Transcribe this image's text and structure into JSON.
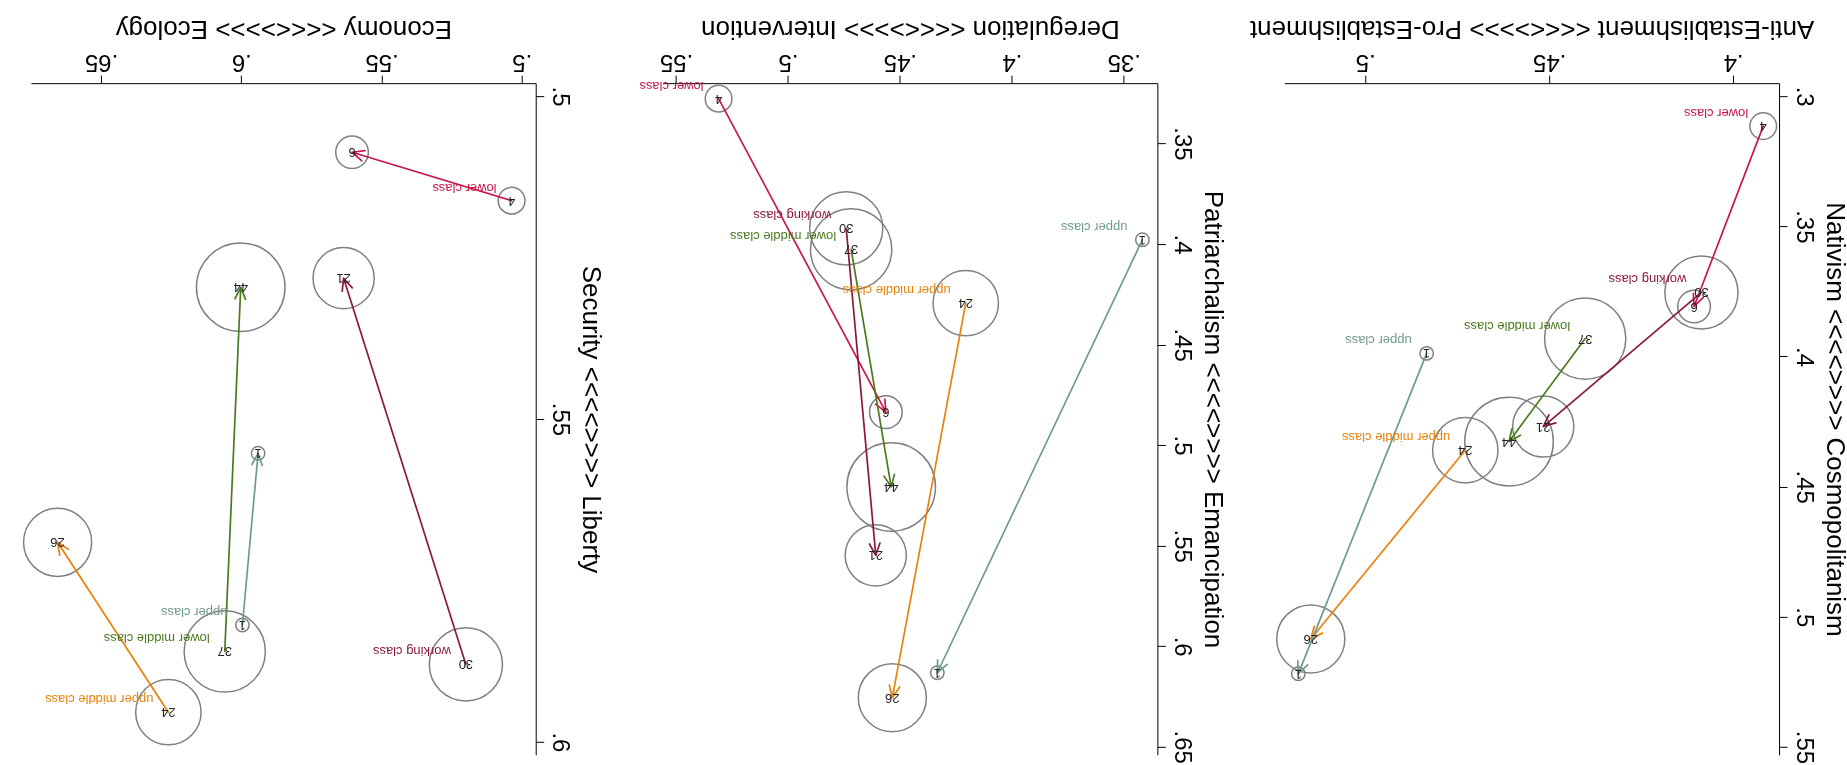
{
  "chart_data": [
    {
      "type": "bubble",
      "xlabel": "Economy <<<<>>>> Ecology",
      "ylabel": "Security <<<<>>>> Liberty",
      "xlim": [
        0.675,
        0.495
      ],
      "ylim": [
        0.602,
        0.498
      ],
      "xticks": [
        {
          "value": 0.5,
          "label": ".5"
        },
        {
          "value": 0.55,
          "label": ".55"
        },
        {
          "value": 0.6,
          "label": ".6"
        },
        {
          "value": 0.65,
          "label": ".65"
        }
      ],
      "yticks": [
        {
          "value": 0.5,
          "label": ".5"
        },
        {
          "value": 0.55,
          "label": ".55"
        },
        {
          "value": 0.6,
          "label": ".6"
        }
      ],
      "series": [
        {
          "type": "bubble",
          "color": "#808080",
          "x": [
            0.5036,
            0.5605,
            0.5199,
            0.5635,
            0.6059,
            0.6002,
            0.5996,
            0.594,
            0.626,
            0.6655
          ],
          "values": [
            0.5162,
            0.5087,
            0.588,
            0.5282,
            0.586,
            0.5296,
            0.5819,
            0.5553,
            0.5954,
            0.5691
          ],
          "sizes": [
            0.091,
            0.136,
            0.682,
            0.477,
            0.841,
            1,
            0.023,
            0.023,
            0.545,
            0.591
          ]
        },
        {
          "type": "line",
          "name": "lower class",
          "color": "#c8184a",
          "x": [
            0.5036,
            0.5605
          ],
          "values": [
            0.5162,
            0.5087
          ]
        },
        {
          "type": "line",
          "name": "working class",
          "color": "#8b1a3a",
          "x": [
            0.5199,
            0.5635
          ],
          "values": [
            0.588,
            0.5282
          ]
        },
        {
          "type": "line",
          "name": "lower middle class",
          "color": "#4a7a1e",
          "x": [
            0.6059,
            0.6002
          ],
          "values": [
            0.586,
            0.5296
          ]
        },
        {
          "type": "line",
          "name": "upper class",
          "color": "#6f9a8e",
          "x": [
            0.5996,
            0.594
          ],
          "values": [
            0.5819,
            0.5553
          ]
        },
        {
          "type": "line",
          "name": "upper middle class",
          "color": "#e8820c",
          "x": [
            0.626,
            0.6655
          ],
          "values": [
            0.5954,
            0.5691
          ]
        }
      ],
      "annotations": [
        {
          "text": "4",
          "x": 0.5036,
          "y": 0.5162
        },
        {
          "text": "6",
          "x": 0.5605,
          "y": 0.5087
        },
        {
          "text": "30",
          "x": 0.5199,
          "y": 0.588
        },
        {
          "text": "21",
          "x": 0.5635,
          "y": 0.5282
        },
        {
          "text": "37",
          "x": 0.6059,
          "y": 0.586
        },
        {
          "text": "44",
          "x": 0.6002,
          "y": 0.5296
        },
        {
          "text": "1",
          "x": 0.5996,
          "y": 0.5819
        },
        {
          "text": "1",
          "x": 0.594,
          "y": 0.5553
        },
        {
          "text": "24",
          "x": 0.626,
          "y": 0.5954
        },
        {
          "text": "26",
          "x": 0.6655,
          "y": 0.5691
        }
      ]
    },
    {
      "type": "bubble",
      "xlabel": "Deregulation <<<<>>>> Intervention",
      "ylabel": "Patriarchalism <<<<>>>> Emancipation",
      "xlim": [
        0.556,
        0.335
      ],
      "ylim": [
        0.654,
        0.32
      ],
      "xticks": [
        {
          "value": 0.35,
          "label": ".35"
        },
        {
          "value": 0.4,
          "label": ".4"
        },
        {
          "value": 0.45,
          "label": ".45"
        },
        {
          "value": 0.5,
          "label": ".5"
        },
        {
          "value": 0.55,
          "label": ".55"
        }
      ],
      "yticks": [
        {
          "value": 0.35,
          "label": ".35"
        },
        {
          "value": 0.4,
          "label": ".4"
        },
        {
          "value": 0.45,
          "label": ".45"
        },
        {
          "value": 0.5,
          "label": ".5"
        },
        {
          "value": 0.55,
          "label": ".55"
        },
        {
          "value": 0.6,
          "label": ".6"
        },
        {
          "value": 0.65,
          "label": ".65"
        }
      ],
      "series": [
        {
          "type": "bubble",
          "color": "#808080",
          "x": [
            0.531,
            0.4563,
            0.474,
            0.4608,
            0.4718,
            0.4539,
            0.4206,
            0.4534,
            0.3417,
            0.4333
          ],
          "values": [
            0.3277,
            0.4836,
            0.3922,
            0.5548,
            0.4026,
            0.5208,
            0.4294,
            0.6256,
            0.3979,
            0.6132
          ],
          "sizes": [
            0.091,
            0.136,
            0.682,
            0.477,
            0.841,
            1,
            0.545,
            0.591,
            0.023,
            0.023
          ]
        },
        {
          "type": "line",
          "name": "lower class",
          "color": "#c8184a",
          "x": [
            0.531,
            0.4563
          ],
          "values": [
            0.3277,
            0.4836
          ]
        },
        {
          "type": "line",
          "name": "working class",
          "color": "#8b1a3a",
          "x": [
            0.474,
            0.4608
          ],
          "values": [
            0.3922,
            0.5548
          ]
        },
        {
          "type": "line",
          "name": "lower middle class",
          "color": "#4a7a1e",
          "x": [
            0.4718,
            0.4539
          ],
          "values": [
            0.4026,
            0.5208
          ]
        },
        {
          "type": "line",
          "name": "upper middle class",
          "color": "#e8820c",
          "x": [
            0.4206,
            0.4534
          ],
          "values": [
            0.4294,
            0.6256
          ]
        },
        {
          "type": "line",
          "name": "upper class",
          "color": "#6f9a8e",
          "x": [
            0.3417,
            0.4333
          ],
          "values": [
            0.3979,
            0.6132
          ]
        }
      ],
      "annotations": [
        {
          "text": "4",
          "x": 0.531,
          "y": 0.3277
        },
        {
          "text": "6",
          "x": 0.4563,
          "y": 0.4836
        },
        {
          "text": "30",
          "x": 0.474,
          "y": 0.3922
        },
        {
          "text": "21",
          "x": 0.4608,
          "y": 0.5548
        },
        {
          "text": "37",
          "x": 0.4718,
          "y": 0.4026
        },
        {
          "text": "44",
          "x": 0.4539,
          "y": 0.5208
        },
        {
          "text": "24",
          "x": 0.4206,
          "y": 0.4294
        },
        {
          "text": "26",
          "x": 0.4534,
          "y": 0.6256
        },
        {
          "text": "1",
          "x": 0.3417,
          "y": 0.3979
        },
        {
          "text": "1",
          "x": 0.4333,
          "y": 0.6132
        }
      ]
    },
    {
      "type": "bubble",
      "xlabel": "Anti-Establishment <<<<>>>> Pro-Establishment",
      "ylabel": "Nativism <<<<>>>> Cosmopolitanism",
      "xlim": [
        0.522,
        0.3875
      ],
      "ylim": [
        0.553,
        0.295
      ],
      "xticks": [
        {
          "value": 0.4,
          "label": ".4"
        },
        {
          "value": 0.45,
          "label": ".45"
        },
        {
          "value": 0.5,
          "label": ".5"
        }
      ],
      "yticks": [
        {
          "value": 0.3,
          "label": ".3"
        },
        {
          "value": 0.35,
          "label": ".35"
        },
        {
          "value": 0.4,
          "label": ".4"
        },
        {
          "value": 0.45,
          "label": ".45"
        },
        {
          "value": 0.5,
          "label": ".5"
        },
        {
          "value": 0.55,
          "label": ".55"
        }
      ],
      "series": [
        {
          "type": "bubble",
          "color": "#808080",
          "x": [
            0.3918,
            0.4106,
            0.4086,
            0.4516,
            0.4402,
            0.4609,
            0.4728,
            0.5148,
            0.4833,
            0.5182
          ],
          "values": [
            0.3115,
            0.3808,
            0.3754,
            0.4269,
            0.3931,
            0.4327,
            0.436,
            0.5085,
            0.3988,
            0.5219
          ],
          "sizes": [
            0.091,
            0.136,
            0.682,
            0.477,
            0.841,
            1,
            0.545,
            0.591,
            0.023,
            0.023
          ]
        },
        {
          "type": "line",
          "name": "lower class",
          "color": "#c8184a",
          "x": [
            0.3918,
            0.4106
          ],
          "values": [
            0.3115,
            0.3808
          ]
        },
        {
          "type": "line",
          "name": "working class",
          "color": "#8b1a3a",
          "x": [
            0.4086,
            0.4516
          ],
          "values": [
            0.3754,
            0.4269
          ]
        },
        {
          "type": "line",
          "name": "lower middle class",
          "color": "#4a7a1e",
          "x": [
            0.4402,
            0.4609
          ],
          "values": [
            0.3931,
            0.4327
          ]
        },
        {
          "type": "line",
          "name": "upper middle class",
          "color": "#e8820c",
          "x": [
            0.4728,
            0.5148
          ],
          "values": [
            0.436,
            0.5085
          ]
        },
        {
          "type": "line",
          "name": "upper class",
          "color": "#6f9a8e",
          "x": [
            0.4833,
            0.5182
          ],
          "values": [
            0.3988,
            0.5219
          ]
        }
      ],
      "annotations": [
        {
          "text": "4",
          "x": 0.3918,
          "y": 0.3115
        },
        {
          "text": "6",
          "x": 0.4106,
          "y": 0.3808
        },
        {
          "text": "30",
          "x": 0.4086,
          "y": 0.3754
        },
        {
          "text": "21",
          "x": 0.4516,
          "y": 0.4269
        },
        {
          "text": "37",
          "x": 0.4402,
          "y": 0.3931
        },
        {
          "text": "44",
          "x": 0.4609,
          "y": 0.4327
        },
        {
          "text": "24",
          "x": 0.4728,
          "y": 0.436
        },
        {
          "text": "26",
          "x": 0.5148,
          "y": 0.5085
        },
        {
          "text": "1",
          "x": 0.4833,
          "y": 0.3988
        },
        {
          "text": "1",
          "x": 0.5182,
          "y": 0.5219
        }
      ]
    }
  ]
}
